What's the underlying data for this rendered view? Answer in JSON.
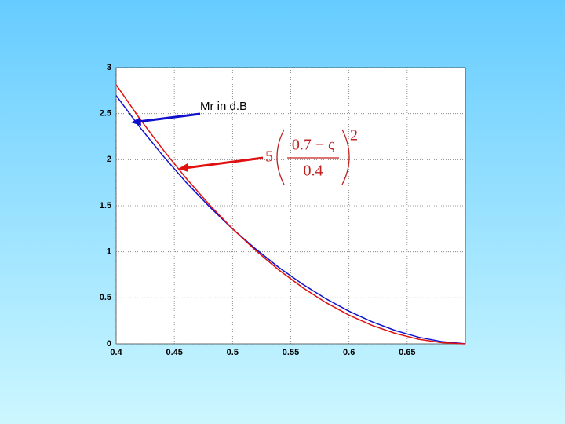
{
  "chart_data": {
    "type": "line",
    "x": [
      0.4,
      0.42,
      0.44,
      0.46,
      0.48,
      0.5,
      0.52,
      0.54,
      0.56,
      0.58,
      0.6,
      0.62,
      0.64,
      0.66,
      0.68,
      0.7
    ],
    "series": [
      {
        "name": "Mr in d.B",
        "color": "#1010cc",
        "values": [
          2.696,
          2.358,
          2.046,
          1.756,
          1.492,
          1.249,
          1.029,
          0.828,
          0.65,
          0.492,
          0.355,
          0.239,
          0.144,
          0.072,
          0.024,
          0.001
        ]
      },
      {
        "color": "#e01010",
        "values": [
          2.813,
          2.45,
          2.113,
          1.8,
          1.513,
          1.25,
          1.013,
          0.8,
          0.613,
          0.45,
          0.313,
          0.2,
          0.113,
          0.05,
          0.013,
          0
        ]
      }
    ],
    "formula": {
      "coefficient": "5",
      "numerator": "0.7 − ς",
      "denominator": "0.4",
      "exponent": "2"
    },
    "xlim": [
      0.4,
      0.7
    ],
    "xticks": [
      0.4,
      0.45,
      0.5,
      0.55,
      0.6,
      0.65
    ],
    "ylim": [
      0,
      3
    ],
    "yticks": [
      0,
      0.5,
      1,
      1.5,
      2,
      2.5,
      3
    ],
    "grid": true
  }
}
